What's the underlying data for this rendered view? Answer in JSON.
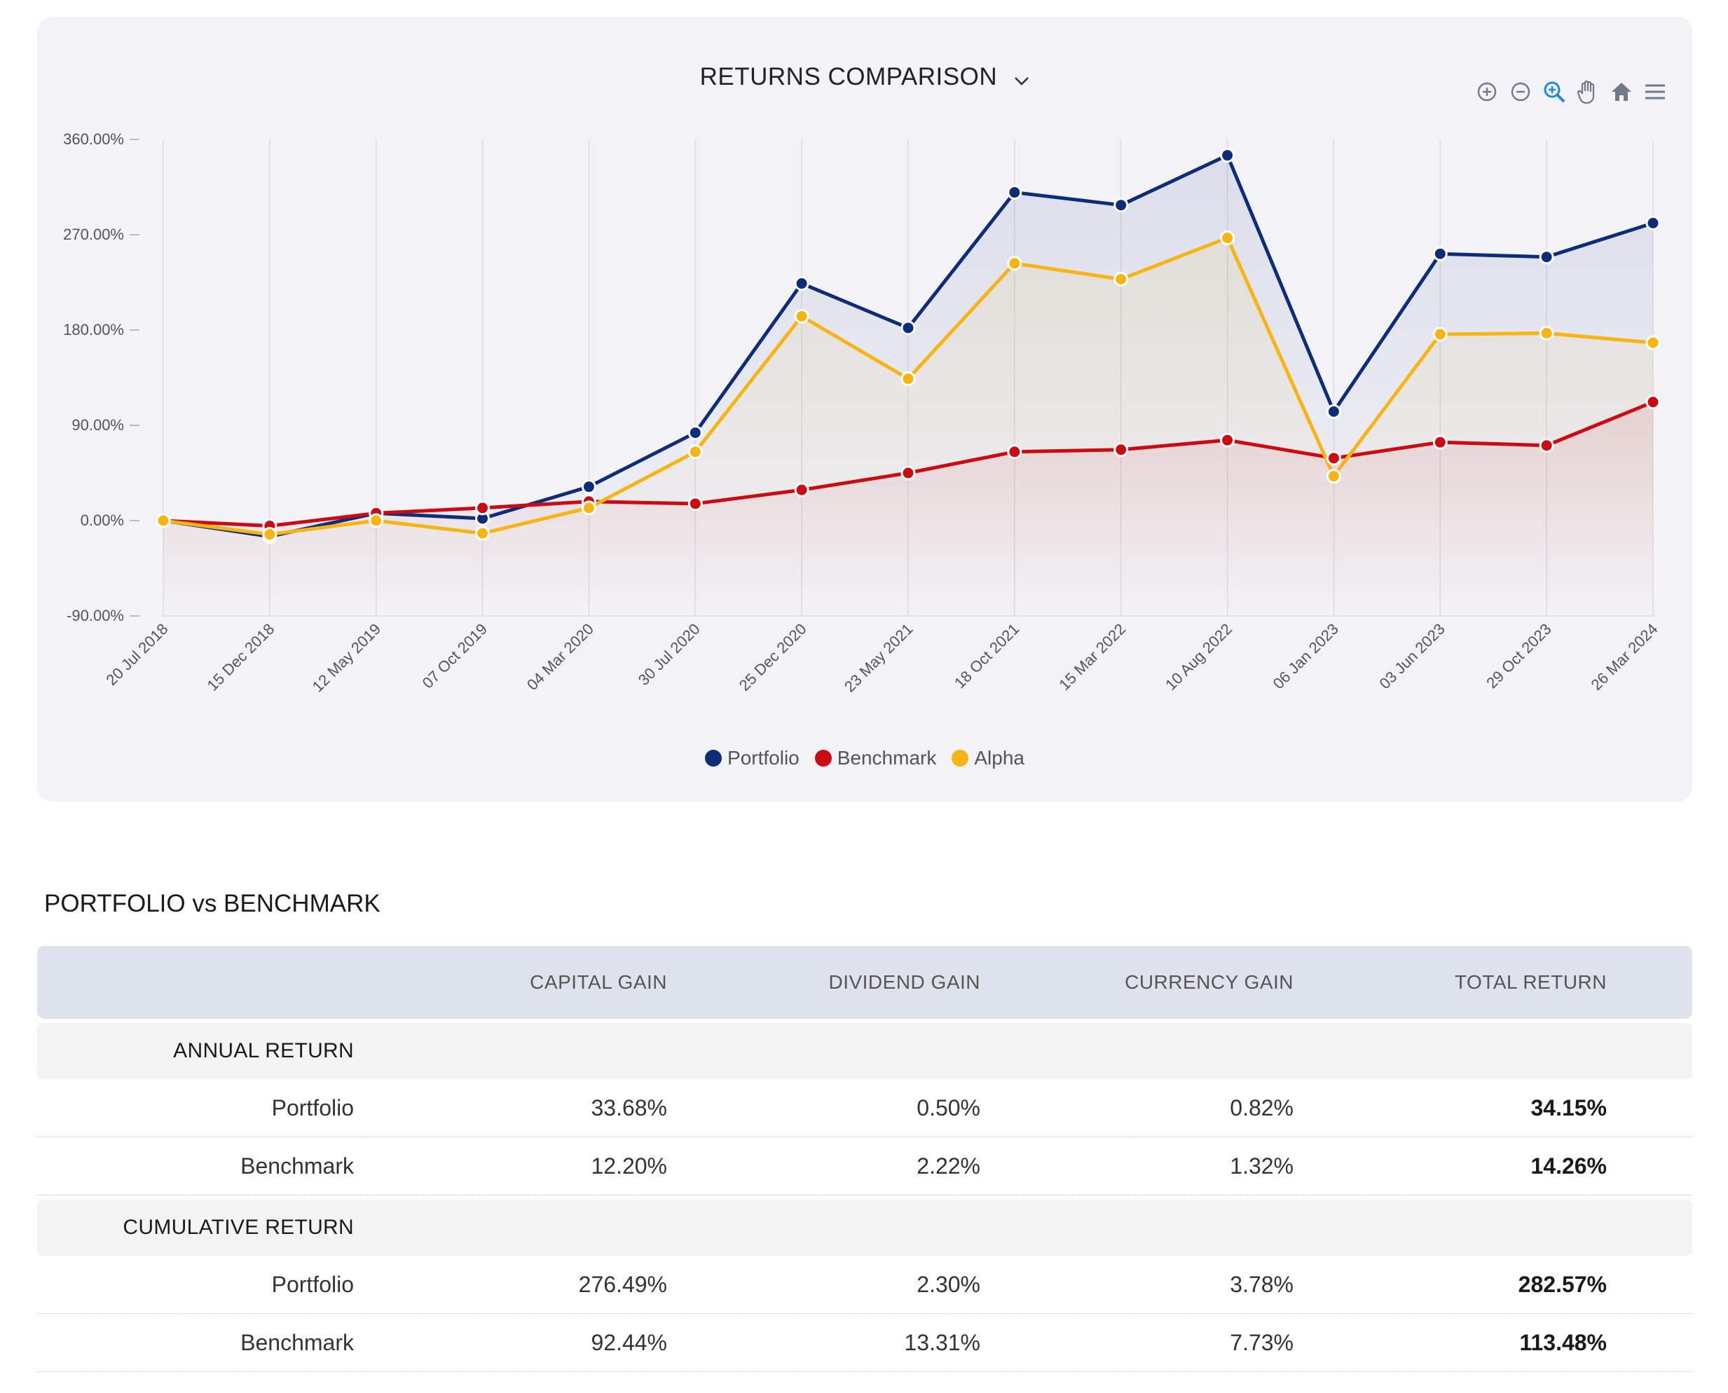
{
  "chart": {
    "title": "RETURNS COMPARISON",
    "toolbar": [
      "zoom-in-icon",
      "zoom-out-icon",
      "zoom-selection-icon",
      "pan-hand-icon",
      "home-reset-icon",
      "menu-icon"
    ]
  },
  "chart_data": {
    "type": "line",
    "title": "RETURNS COMPARISON",
    "x": [
      "20 Jul 2018",
      "15 Dec 2018",
      "12 May 2019",
      "07 Oct 2019",
      "04 Mar 2020",
      "30 Jul 2020",
      "25 Dec 2020",
      "23 May 2021",
      "18 Oct 2021",
      "15 Mar 2022",
      "10 Aug 2022",
      "06 Jan 2023",
      "03 Jun 2023",
      "29 Oct 2023",
      "26 Mar 2024"
    ],
    "yticks": [
      "360.00%",
      "270.00%",
      "180.00%",
      "90.00%",
      "0.00%",
      "-90.00%"
    ],
    "ylim": [
      -90,
      360
    ],
    "grid": "vertical",
    "legend_position": "bottom-center",
    "series": [
      {
        "name": "Portfolio",
        "color": "#0d2d7a",
        "values": [
          0,
          -15,
          7,
          2,
          32,
          83,
          224,
          182,
          310,
          298,
          345,
          103,
          252,
          249,
          281
        ]
      },
      {
        "name": "Benchmark",
        "color": "#cc0a12",
        "values": [
          0,
          -5,
          7,
          12,
          18,
          16,
          29,
          45,
          65,
          67,
          76,
          59,
          74,
          71,
          112
        ]
      },
      {
        "name": "Alpha",
        "color": "#f7b412",
        "values": [
          0,
          -13,
          0,
          -12,
          12,
          65,
          193,
          134,
          243,
          228,
          267,
          42,
          176,
          177,
          168
        ]
      }
    ]
  },
  "legend": [
    {
      "name": "Portfolio",
      "color": "#0d2d7a"
    },
    {
      "name": "Benchmark",
      "color": "#cc0a12"
    },
    {
      "name": "Alpha",
      "color": "#f7b412"
    }
  ],
  "section": {
    "title": "PORTFOLIO vs BENCHMARK"
  },
  "table": {
    "headers": [
      "",
      "CAPITAL GAIN",
      "DIVIDEND GAIN",
      "CURRENCY GAIN",
      "TOTAL RETURN"
    ],
    "groups": [
      {
        "label": "ANNUAL RETURN",
        "rows": [
          {
            "label": "Portfolio",
            "capital": "33.68%",
            "dividend": "0.50%",
            "currency": "0.82%",
            "total": "34.15%"
          },
          {
            "label": "Benchmark",
            "capital": "12.20%",
            "dividend": "2.22%",
            "currency": "1.32%",
            "total": "14.26%"
          }
        ]
      },
      {
        "label": "CUMULATIVE RETURN",
        "rows": [
          {
            "label": "Portfolio",
            "capital": "276.49%",
            "dividend": "2.30%",
            "currency": "3.78%",
            "total": "282.57%"
          },
          {
            "label": "Benchmark",
            "capital": "92.44%",
            "dividend": "13.31%",
            "currency": "7.73%",
            "total": "113.48%"
          }
        ]
      }
    ]
  }
}
